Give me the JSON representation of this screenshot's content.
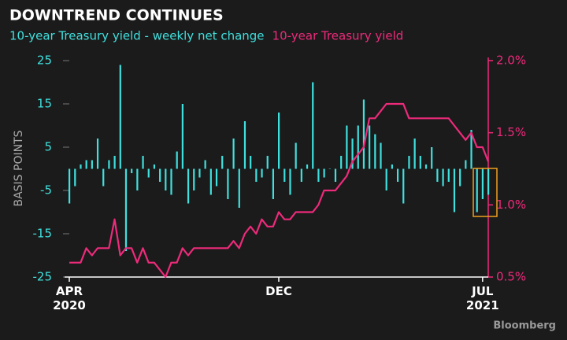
{
  "chart_data": {
    "type": "bar_line",
    "title": "DOWNTREND CONTINUES",
    "ylabel": "BASIS POINTS",
    "source": "Bloomberg",
    "categories": [
      "APR\n2020",
      null,
      null,
      null,
      null,
      null,
      null,
      null,
      null,
      null,
      null,
      null,
      null,
      null,
      null,
      null,
      null,
      null,
      null,
      null,
      null,
      null,
      null,
      null,
      null,
      null,
      null,
      null,
      null,
      null,
      null,
      null,
      null,
      null,
      null,
      null,
      null,
      "DEC",
      null,
      null,
      null,
      null,
      null,
      null,
      null,
      null,
      null,
      null,
      null,
      null,
      null,
      null,
      null,
      null,
      null,
      null,
      null,
      null,
      null,
      null,
      null,
      null,
      null,
      null,
      null,
      null,
      null,
      null,
      null,
      null,
      null,
      null,
      null,
      "JUL\n2021",
      null
    ],
    "series": [
      {
        "name": "10-year Treasury yield - weekly net change",
        "color": "#3fe0de",
        "axis": "y",
        "values": [
          -8,
          -4,
          1,
          2,
          2,
          7,
          -4,
          2,
          3,
          24,
          -19,
          -1,
          -5,
          3,
          -2,
          1,
          -3,
          -5,
          -6,
          4,
          15,
          -8,
          -5,
          -2,
          2,
          -6,
          -4,
          3,
          -7,
          7,
          -9,
          11,
          3,
          -3,
          -2,
          3,
          -7,
          13,
          -3,
          -6,
          6,
          -3,
          1,
          20,
          -3,
          -2,
          0,
          -3,
          3,
          10,
          7,
          10,
          16,
          10,
          8,
          6,
          -5,
          1,
          -3,
          -8,
          3,
          7,
          3,
          1,
          5,
          -3,
          -4,
          -3,
          -10,
          -4,
          2,
          9,
          -10,
          -7,
          -6
        ]
      },
      {
        "name": "10-year Treasury yield",
        "color": "#ee2a7b",
        "axis": "y2",
        "values": [
          0.6,
          0.6,
          0.6,
          0.7,
          0.65,
          0.7,
          0.7,
          0.7,
          0.9,
          0.65,
          0.7,
          0.7,
          0.6,
          0.7,
          0.6,
          0.6,
          0.55,
          0.5,
          0.6,
          0.6,
          0.7,
          0.65,
          0.7,
          0.7,
          0.7,
          0.7,
          0.7,
          0.7,
          0.7,
          0.75,
          0.7,
          0.8,
          0.85,
          0.8,
          0.9,
          0.85,
          0.85,
          0.95,
          0.9,
          0.9,
          0.95,
          0.95,
          0.95,
          0.95,
          1.0,
          1.1,
          1.1,
          1.1,
          1.15,
          1.2,
          1.3,
          1.35,
          1.4,
          1.6,
          1.6,
          1.65,
          1.7,
          1.7,
          1.7,
          1.7,
          1.6,
          1.6,
          1.6,
          1.6,
          1.6,
          1.6,
          1.6,
          1.6,
          1.55,
          1.5,
          1.45,
          1.5,
          1.4,
          1.4,
          1.3
        ]
      }
    ],
    "ylim": [
      -25,
      25
    ],
    "yticks": [
      25,
      15,
      5,
      -5,
      -15,
      -25
    ],
    "y2lim": [
      0.5,
      2.0
    ],
    "y2ticks": [
      {
        "value": 2.0,
        "label": "2.0%"
      },
      {
        "value": 1.5,
        "label": "1.5%"
      },
      {
        "value": 1.0,
        "label": "1.0%"
      },
      {
        "value": 0.5,
        "label": "0.5%"
      }
    ]
  }
}
